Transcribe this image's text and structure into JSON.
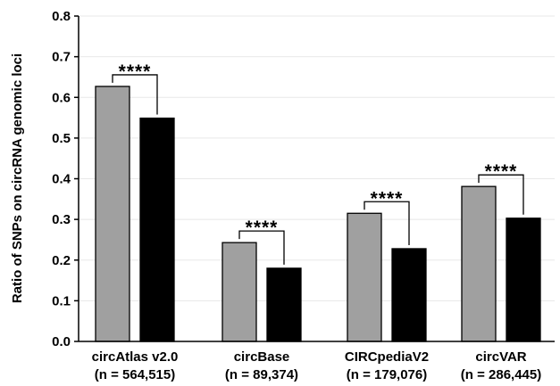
{
  "chart_data": {
    "type": "bar",
    "title": "",
    "xlabel": "",
    "ylabel": "Ratio of SNPs on circRNA genomic loci",
    "ylim": [
      0,
      0.8
    ],
    "yticks": [
      "0.0",
      "0.1",
      "0.2",
      "0.3",
      "0.4",
      "0.5",
      "0.6",
      "0.7",
      "0.8"
    ],
    "grid": true,
    "legend": "none",
    "categories": [
      {
        "name": "circAtlas v2.0",
        "n": "(n = 564,515)"
      },
      {
        "name": "circBase",
        "n": "(n = 89,374)"
      },
      {
        "name": "CIRCpediaV2",
        "n": "(n = 179,076)"
      },
      {
        "name": "circVAR",
        "n": "(n = 286,445)"
      }
    ],
    "series": [
      {
        "color": "#a0a0a0",
        "values": [
          0.627,
          0.243,
          0.315,
          0.381
        ]
      },
      {
        "color": "#000000",
        "values": [
          0.549,
          0.18,
          0.228,
          0.303
        ]
      }
    ],
    "annotations": [
      "****",
      "****",
      "****",
      "****"
    ]
  }
}
